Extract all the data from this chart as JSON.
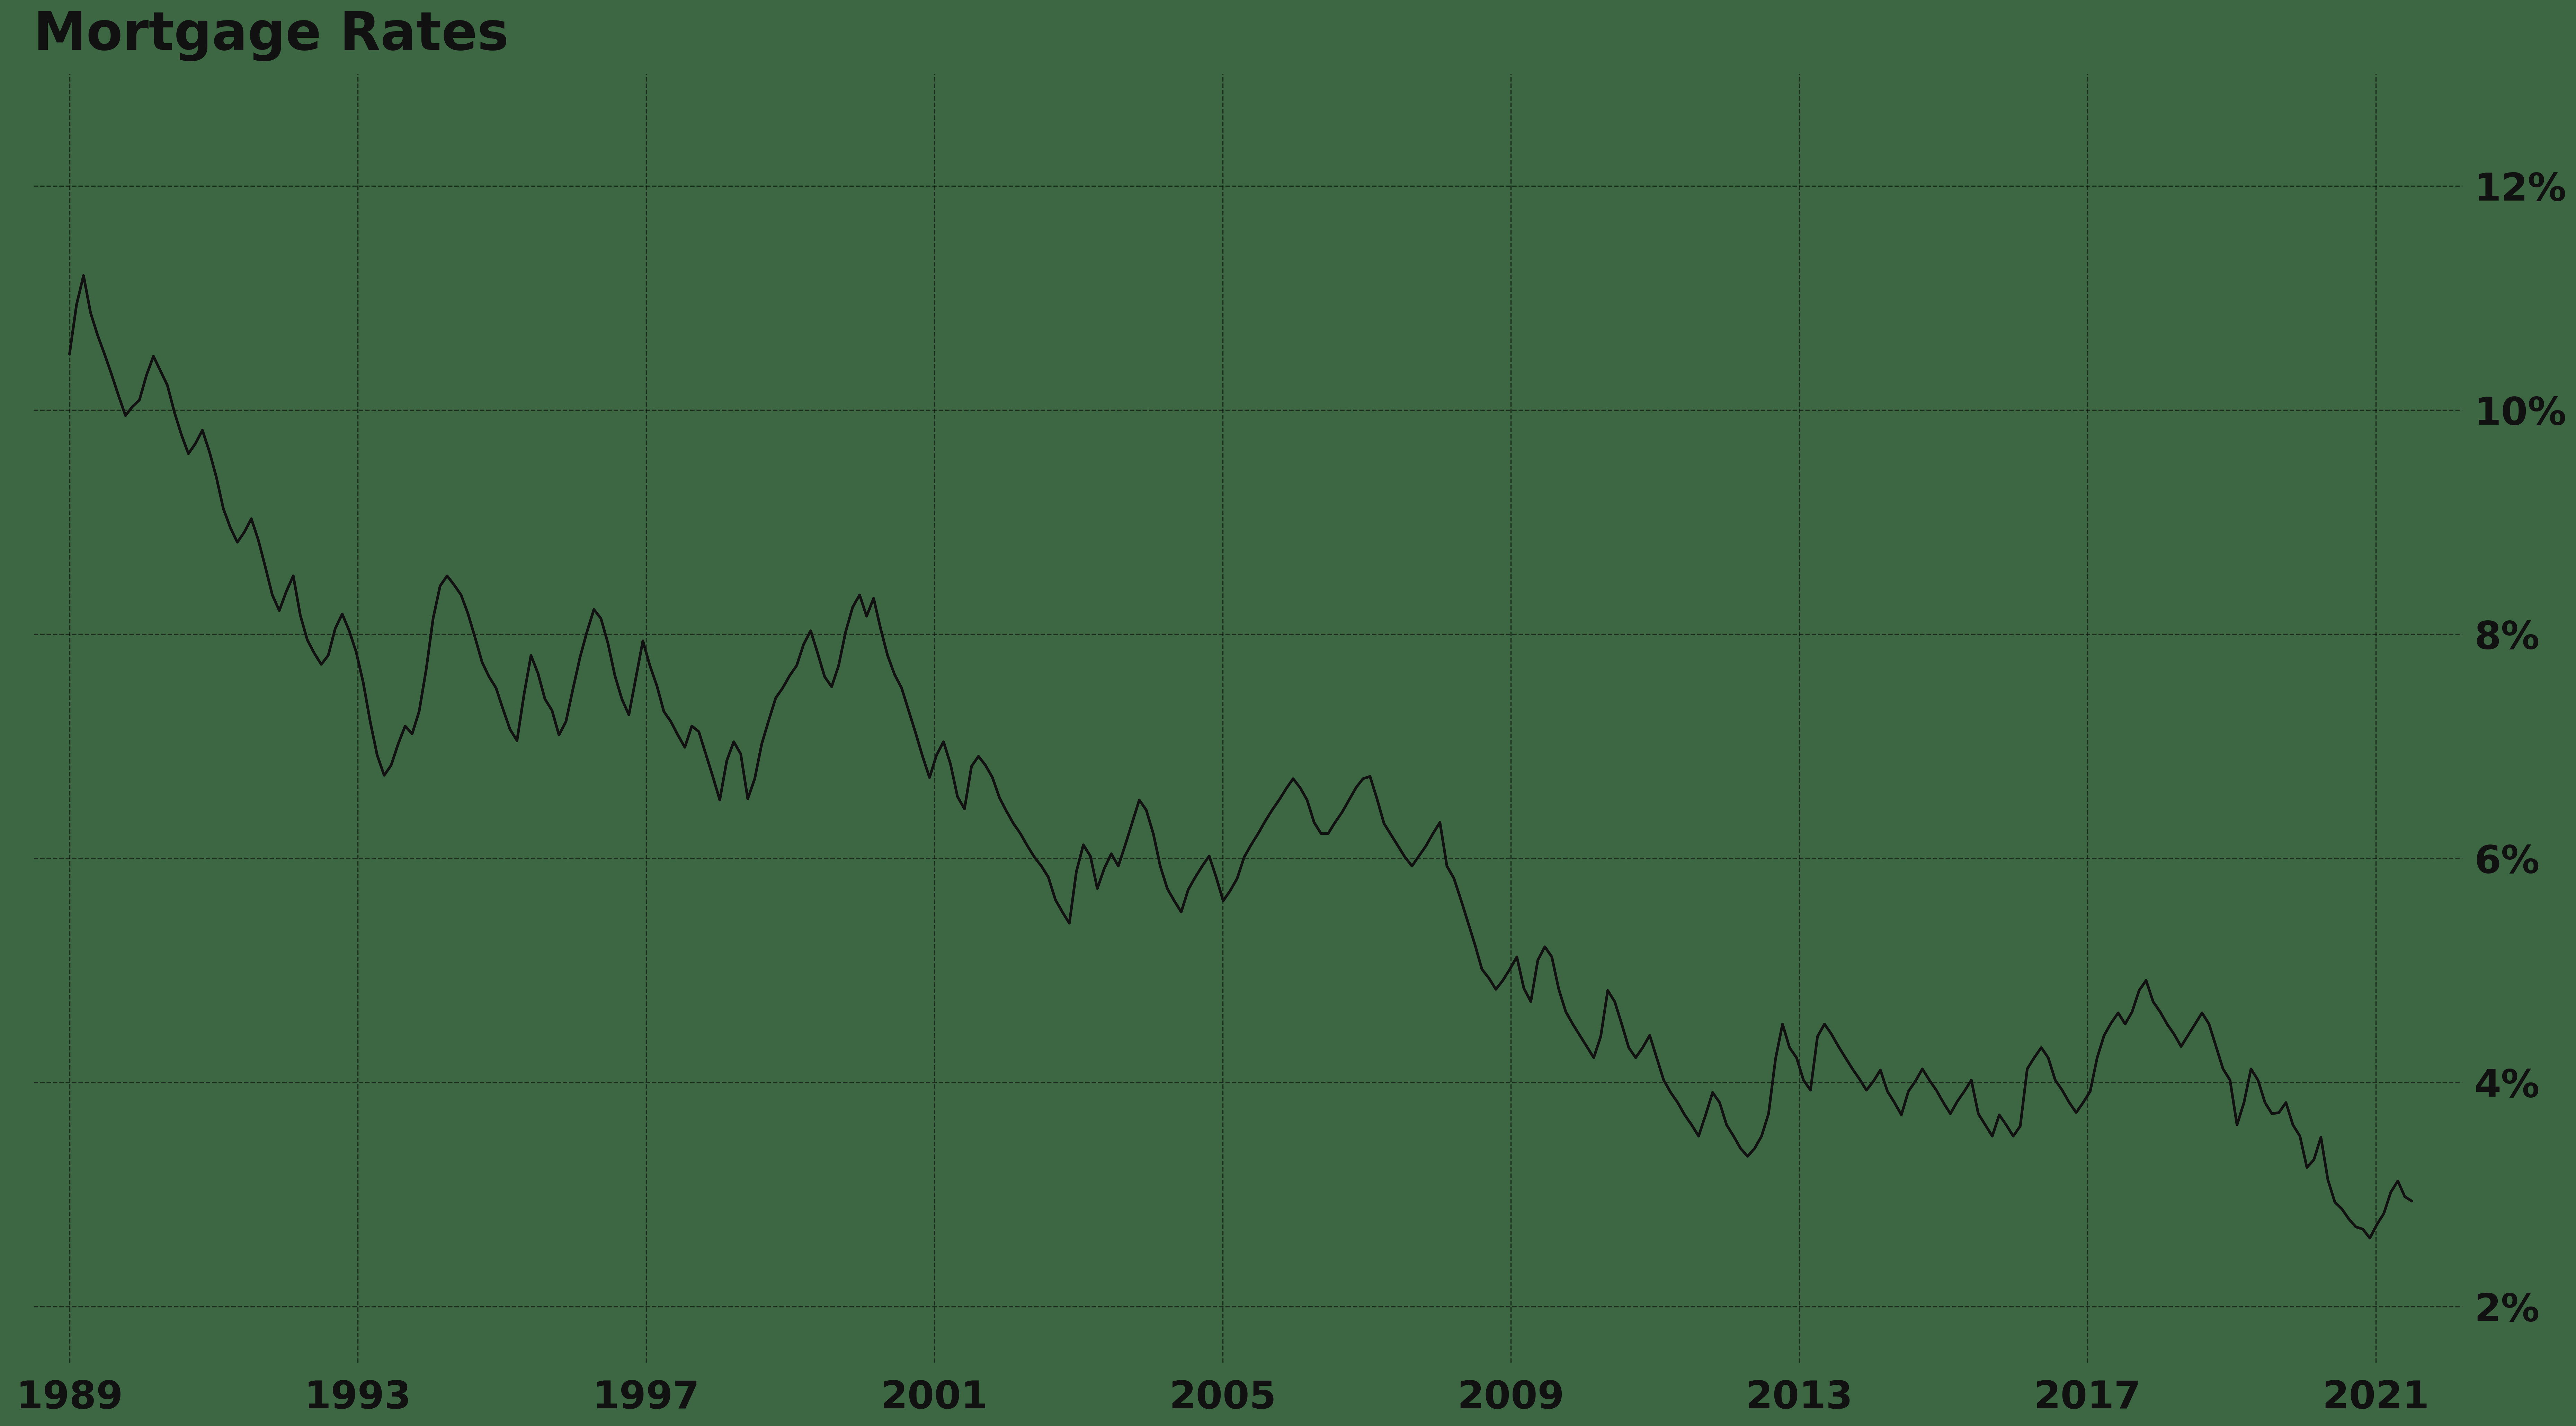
{
  "title": "Mortgage Rates",
  "background_color": "#3d6642",
  "line_color": "#111111",
  "grid_color": "#000000",
  "title_color": "#111111",
  "tick_color": "#111111",
  "ylim": [
    1.5,
    13.0
  ],
  "yticks": [
    2,
    4,
    6,
    8,
    10,
    12
  ],
  "xlim": [
    1988.5,
    2022.2
  ],
  "xticks": [
    1989,
    1993,
    1997,
    2001,
    2005,
    2009,
    2013,
    2017,
    2021
  ],
  "title_fontsize": 110,
  "tick_fontsize": 80,
  "line_width": 5.5,
  "rates": [
    10.5,
    10.94,
    11.2,
    10.87,
    10.67,
    10.5,
    10.32,
    10.13,
    9.95,
    10.03,
    10.09,
    10.31,
    10.48,
    10.35,
    10.22,
    9.98,
    9.78,
    9.61,
    9.7,
    9.82,
    9.63,
    9.4,
    9.12,
    8.95,
    8.82,
    8.91,
    9.03,
    8.84,
    8.6,
    8.35,
    8.21,
    8.38,
    8.52,
    8.17,
    7.95,
    7.83,
    7.73,
    7.81,
    8.05,
    8.18,
    8.03,
    7.84,
    7.57,
    7.22,
    6.92,
    6.74,
    6.83,
    7.02,
    7.18,
    7.11,
    7.31,
    7.68,
    8.14,
    8.43,
    8.52,
    8.44,
    8.35,
    8.18,
    7.97,
    7.75,
    7.62,
    7.52,
    7.33,
    7.15,
    7.05,
    7.46,
    7.81,
    7.65,
    7.42,
    7.32,
    7.1,
    7.22,
    7.51,
    7.79,
    8.02,
    8.22,
    8.14,
    7.92,
    7.63,
    7.42,
    7.28,
    7.61,
    7.94,
    7.72,
    7.54,
    7.31,
    7.22,
    7.1,
    6.99,
    7.18,
    7.13,
    6.93,
    6.73,
    6.52,
    6.87,
    7.04,
    6.93,
    6.53,
    6.71,
    7.02,
    7.23,
    7.43,
    7.52,
    7.63,
    7.72,
    7.91,
    8.03,
    7.83,
    7.62,
    7.53,
    7.72,
    8.02,
    8.24,
    8.35,
    8.16,
    8.32,
    8.05,
    7.81,
    7.64,
    7.52,
    7.32,
    7.12,
    6.91,
    6.72,
    6.92,
    7.04,
    6.84,
    6.55,
    6.44,
    6.82,
    6.91,
    6.83,
    6.72,
    6.54,
    6.42,
    6.31,
    6.22,
    6.11,
    6.01,
    5.93,
    5.83,
    5.63,
    5.52,
    5.42,
    5.88,
    6.12,
    6.02,
    5.73,
    5.91,
    6.04,
    5.93,
    6.12,
    6.32,
    6.52,
    6.43,
    6.22,
    5.93,
    5.73,
    5.62,
    5.52,
    5.72,
    5.83,
    5.93,
    6.02,
    5.83,
    5.62,
    5.71,
    5.82,
    6.01,
    6.12,
    6.22,
    6.33,
    6.43,
    6.52,
    6.62,
    6.71,
    6.63,
    6.52,
    6.32,
    6.22,
    6.22,
    6.32,
    6.41,
    6.52,
    6.63,
    6.71,
    6.73,
    6.53,
    6.31,
    6.21,
    6.11,
    6.01,
    5.93,
    6.02,
    6.11,
    6.22,
    6.32,
    5.93,
    5.82,
    5.63,
    5.43,
    5.23,
    5.01,
    4.93,
    4.83,
    4.91,
    5.01,
    5.12,
    4.84,
    4.72,
    5.09,
    5.21,
    5.12,
    4.83,
    4.63,
    4.52,
    4.42,
    4.32,
    4.22,
    4.41,
    4.82,
    4.72,
    4.52,
    4.31,
    4.22,
    4.31,
    4.42,
    4.22,
    4.02,
    3.91,
    3.82,
    3.71,
    3.62,
    3.52,
    3.71,
    3.91,
    3.82,
    3.62,
    3.52,
    3.41,
    3.34,
    3.41,
    3.52,
    3.72,
    4.21,
    4.52,
    4.31,
    4.22,
    4.02,
    3.93,
    4.41,
    4.52,
    4.43,
    4.32,
    4.22,
    4.12,
    4.03,
    3.93,
    4.01,
    4.11,
    3.92,
    3.82,
    3.71,
    3.92,
    4.01,
    4.12,
    4.02,
    3.93,
    3.82,
    3.72,
    3.83,
    3.92,
    4.02,
    3.72,
    3.62,
    3.52,
    3.71,
    3.62,
    3.52,
    3.61,
    4.12,
    4.22,
    4.31,
    4.22,
    4.02,
    3.93,
    3.82,
    3.73,
    3.82,
    3.92,
    4.22,
    4.42,
    4.53,
    4.62,
    4.52,
    4.63,
    4.82,
    4.91,
    4.72,
    4.63,
    4.52,
    4.43,
    4.32,
    4.42,
    4.52,
    4.62,
    4.52,
    4.32,
    4.12,
    4.02,
    3.62,
    3.82,
    4.12,
    4.02,
    3.82,
    3.72,
    3.73,
    3.82,
    3.62,
    3.52,
    3.24,
    3.31,
    3.51,
    3.13,
    2.93,
    2.87,
    2.78,
    2.71,
    2.69,
    2.61,
    2.73,
    2.83,
    3.02,
    3.12,
    2.98,
    2.94
  ]
}
